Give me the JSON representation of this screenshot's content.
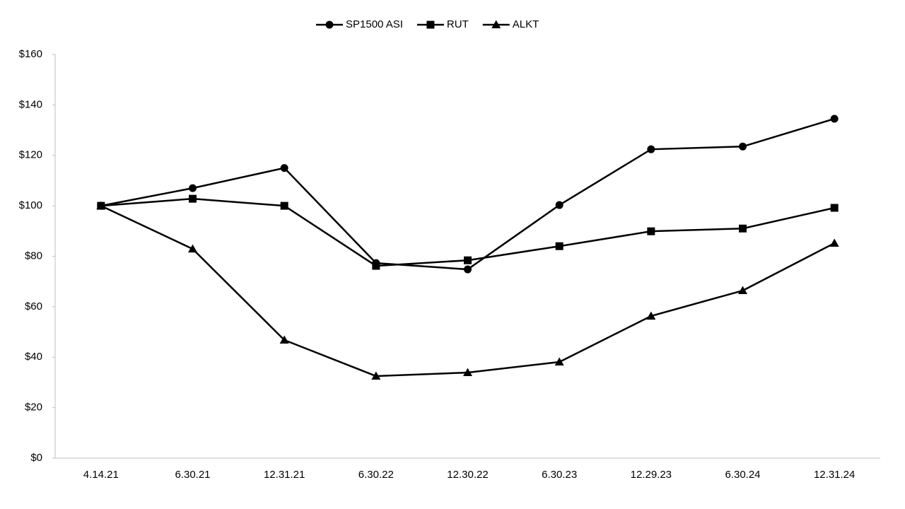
{
  "chart_data": {
    "type": "line",
    "categories": [
      "4.14.21",
      "6.30.21",
      "12.31.21",
      "6.30.22",
      "12.30.22",
      "6.30.23",
      "12.29.23",
      "6.30.24",
      "12.31.24"
    ],
    "series": [
      {
        "name": "SP1500 ASI",
        "color": "#000000",
        "marker": "circle",
        "values": [
          100,
          107,
          115,
          77.3,
          74.8,
          100.3,
          122.4,
          123.5,
          134.5
        ]
      },
      {
        "name": "RUT",
        "color": "#000000",
        "marker": "square",
        "values": [
          100,
          102.8,
          100,
          76.2,
          78.4,
          84,
          89.9,
          91,
          99.2
        ]
      },
      {
        "name": "ALKT",
        "color": "#000000",
        "marker": "triangle",
        "values": [
          100,
          82.9,
          46.8,
          32.5,
          33.9,
          38.1,
          56.3,
          66.4,
          85.2
        ]
      }
    ],
    "ylim": [
      0,
      160
    ],
    "yticks": [
      {
        "value": 0,
        "label": "$0"
      },
      {
        "value": 20,
        "label": "$20"
      },
      {
        "value": 40,
        "label": "$40"
      },
      {
        "value": 60,
        "label": "$60"
      },
      {
        "value": 80,
        "label": "$80"
      },
      {
        "value": 100,
        "label": "$100"
      },
      {
        "value": 120,
        "label": "$120"
      },
      {
        "value": 140,
        "label": "$140"
      },
      {
        "value": 160,
        "label": "$160"
      }
    ],
    "grid": false,
    "legend": "top"
  }
}
